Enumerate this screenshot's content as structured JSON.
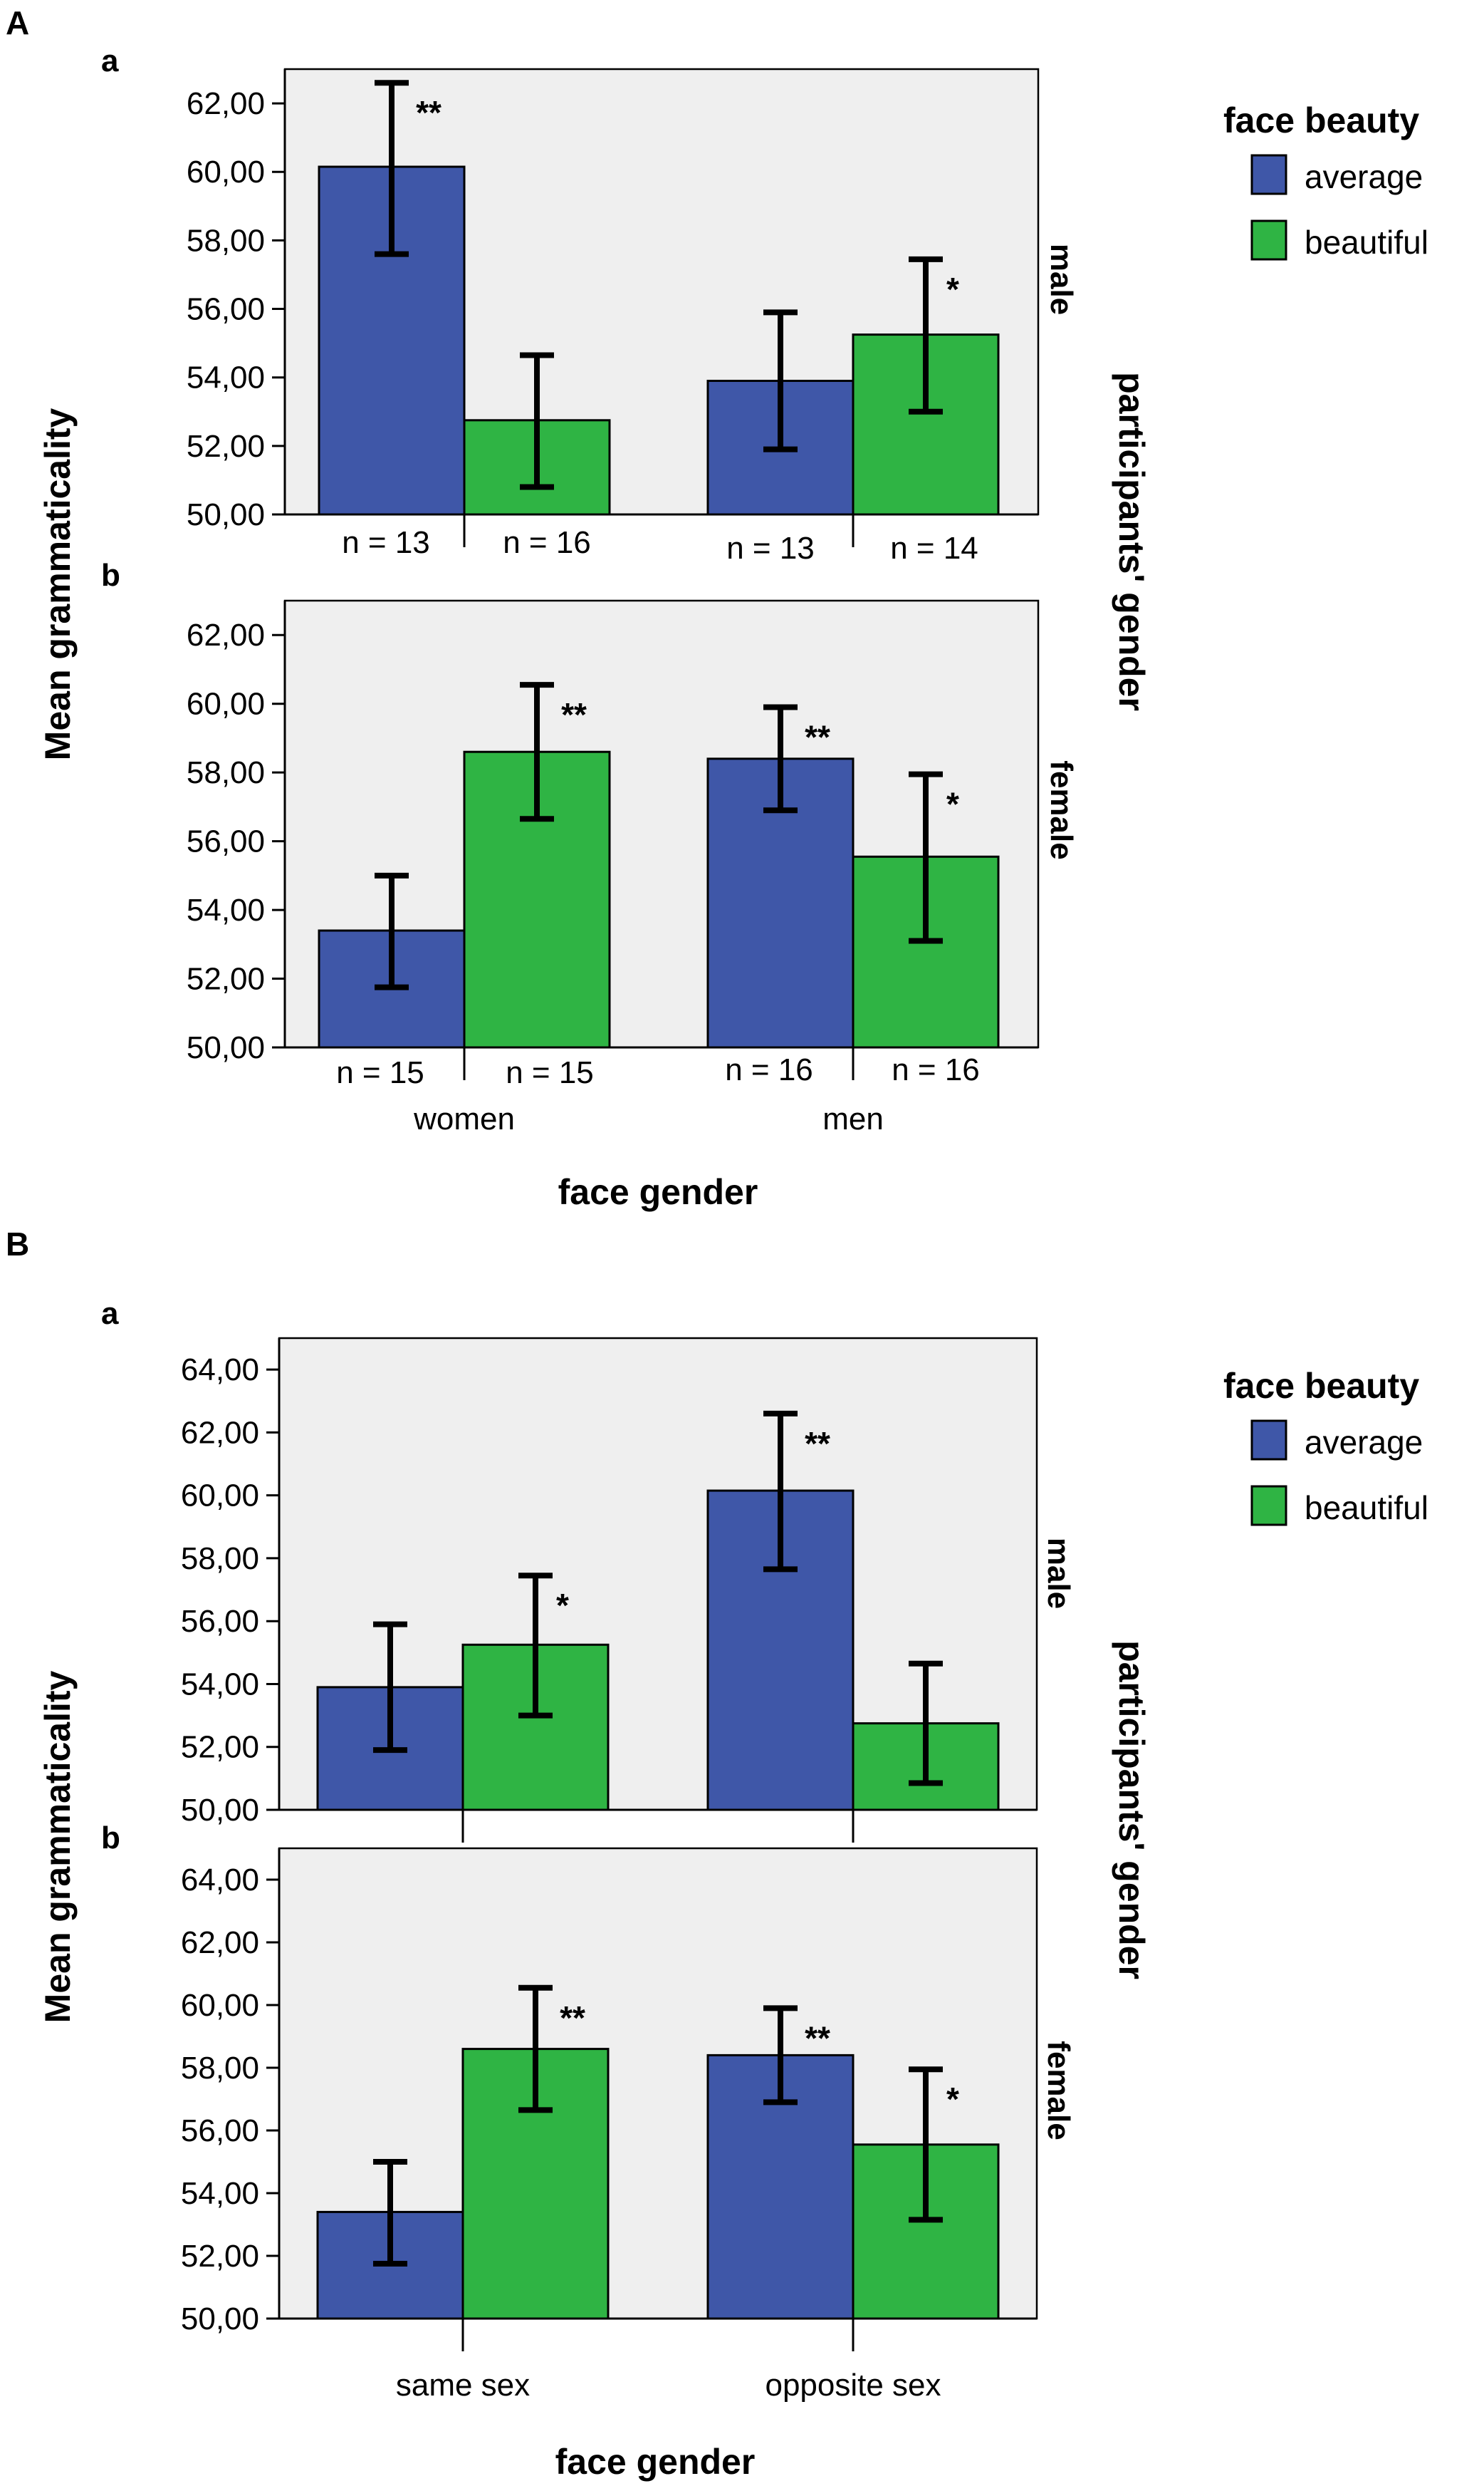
{
  "panels": [
    {
      "label": "A",
      "legend": {
        "title": "face beauty",
        "entries": [
          {
            "label": "average",
            "color": "#3f57a8"
          },
          {
            "label": "beautiful",
            "color": "#2fb444"
          }
        ]
      },
      "ylabel": "Mean grammaticality",
      "xlabel": "face gender",
      "facet_title": "participants' gender",
      "categories": [
        "women",
        "men"
      ],
      "subplots": [
        {
          "label": "a",
          "facet": "male",
          "n_labels": [
            "n = 13",
            "n = 16",
            "n = 13",
            "n = 14"
          ]
        },
        {
          "label": "b",
          "facet": "female",
          "n_labels": [
            "n = 15",
            "n = 15",
            "n = 16",
            "n = 16"
          ]
        }
      ]
    },
    {
      "label": "B",
      "legend": {
        "title": "face beauty",
        "entries": [
          {
            "label": "average",
            "color": "#3f57a8"
          },
          {
            "label": "beautiful",
            "color": "#2fb444"
          }
        ]
      },
      "ylabel": "Mean grammaticality",
      "xlabel": "face gender",
      "facet_title": "participants' gender",
      "categories": [
        "same sex",
        "opposite sex"
      ],
      "subplots": [
        {
          "label": "a",
          "facet": "male"
        },
        {
          "label": "b",
          "facet": "female"
        }
      ]
    }
  ],
  "chart_data": [
    {
      "type": "bar",
      "id": "A-a",
      "title": "A a — participants' gender: male",
      "categories": [
        "women",
        "men"
      ],
      "series": [
        {
          "name": "average",
          "color": "#3f57a8",
          "values": [
            60.15,
            53.9
          ],
          "err_low": [
            57.6,
            51.9
          ],
          "err_high": [
            62.6,
            55.9
          ],
          "sig": [
            "**",
            ""
          ]
        },
        {
          "name": "beautiful",
          "color": "#2fb444",
          "values": [
            52.75,
            55.25
          ],
          "err_low": [
            50.8,
            53.0
          ],
          "err_high": [
            54.65,
            57.45
          ],
          "sig": [
            "",
            "*"
          ]
        }
      ],
      "ylim": [
        50,
        63
      ],
      "yticks": [
        50,
        52,
        54,
        56,
        58,
        60,
        62
      ],
      "ytick_labels": [
        "50,00",
        "52,00",
        "54,00",
        "56,00",
        "58,00",
        "60,00",
        "62,00"
      ],
      "ylabel": "Mean grammaticality",
      "xlabel": "face gender"
    },
    {
      "type": "bar",
      "id": "A-b",
      "title": "A b — participants' gender: female",
      "categories": [
        "women",
        "men"
      ],
      "series": [
        {
          "name": "average",
          "color": "#3f57a8",
          "values": [
            53.4,
            58.4
          ],
          "err_low": [
            51.75,
            56.9
          ],
          "err_high": [
            55.0,
            59.9
          ],
          "sig": [
            "",
            "**"
          ]
        },
        {
          "name": "beautiful",
          "color": "#2fb444",
          "values": [
            58.6,
            55.55
          ],
          "err_low": [
            56.65,
            53.1
          ],
          "err_high": [
            60.55,
            57.95
          ],
          "sig": [
            "**",
            "*"
          ]
        }
      ],
      "ylim": [
        50,
        63
      ],
      "yticks": [
        50,
        52,
        54,
        56,
        58,
        60,
        62
      ],
      "ytick_labels": [
        "50,00",
        "52,00",
        "54,00",
        "56,00",
        "58,00",
        "60,00",
        "62,00"
      ],
      "ylabel": "Mean grammaticality",
      "xlabel": "face gender"
    },
    {
      "type": "bar",
      "id": "B-a",
      "title": "B a — participants' gender: male",
      "categories": [
        "same sex",
        "opposite sex"
      ],
      "series": [
        {
          "name": "average",
          "color": "#3f57a8",
          "values": [
            53.9,
            60.15
          ],
          "err_low": [
            51.9,
            57.65
          ],
          "err_high": [
            55.9,
            62.6
          ],
          "sig": [
            "",
            "**"
          ]
        },
        {
          "name": "beautiful",
          "color": "#2fb444",
          "values": [
            55.25,
            52.75
          ],
          "err_low": [
            53.0,
            50.85
          ],
          "err_high": [
            57.45,
            54.65
          ],
          "sig": [
            "*",
            ""
          ]
        }
      ],
      "ylim": [
        50,
        65
      ],
      "yticks": [
        50,
        52,
        54,
        56,
        58,
        60,
        62,
        64
      ],
      "ytick_labels": [
        "50,00",
        "52,00",
        "54,00",
        "56,00",
        "58,00",
        "60,00",
        "62,00",
        "64,00"
      ],
      "ylabel": "Mean grammaticality",
      "xlabel": "face gender"
    },
    {
      "type": "bar",
      "id": "B-b",
      "title": "B b — participants' gender: female",
      "categories": [
        "same sex",
        "opposite sex"
      ],
      "series": [
        {
          "name": "average",
          "color": "#3f57a8",
          "values": [
            53.4,
            58.4
          ],
          "err_low": [
            51.75,
            56.9
          ],
          "err_high": [
            55.0,
            59.9
          ],
          "sig": [
            "",
            "**"
          ]
        },
        {
          "name": "beautiful",
          "color": "#2fb444",
          "values": [
            58.6,
            55.55
          ],
          "err_low": [
            56.65,
            53.15
          ],
          "err_high": [
            60.55,
            57.95
          ],
          "sig": [
            "**",
            "*"
          ]
        }
      ],
      "ylim": [
        50,
        65
      ],
      "yticks": [
        50,
        52,
        54,
        56,
        58,
        60,
        62,
        64
      ],
      "ytick_labels": [
        "50,00",
        "52,00",
        "54,00",
        "56,00",
        "58,00",
        "60,00",
        "62,00",
        "64,00"
      ],
      "ylabel": "Mean grammaticality",
      "xlabel": "face gender"
    }
  ]
}
